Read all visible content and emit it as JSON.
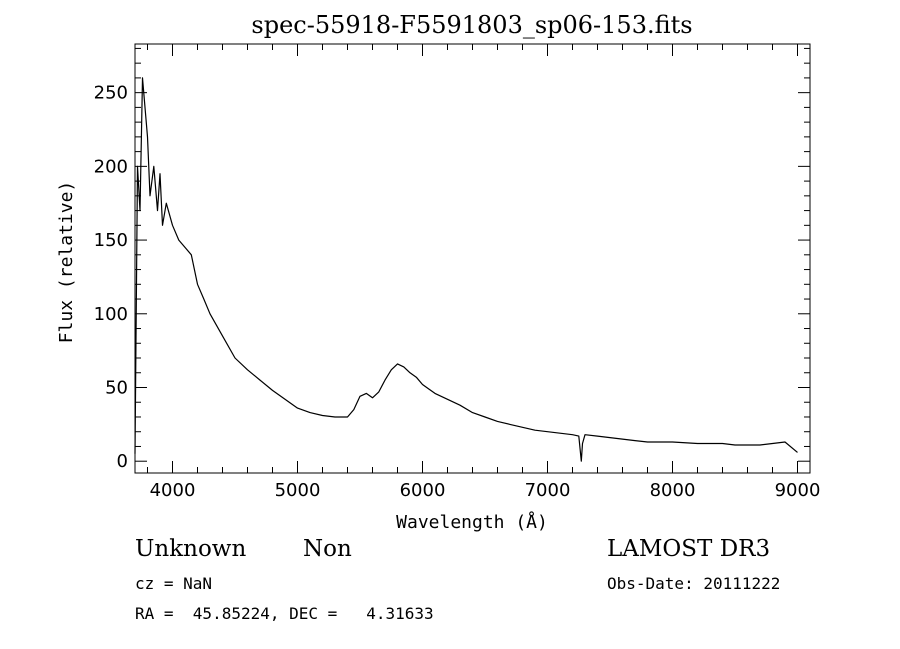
{
  "chart_data": {
    "type": "line",
    "title": "spec-55918-F5591803_sp06-153.fits",
    "xlabel": "Wavelength (Å)",
    "ylabel": "Flux (relative)",
    "xlim": [
      3700,
      9100
    ],
    "ylim": [
      -8,
      283
    ],
    "xticks": [
      4000,
      5000,
      6000,
      7000,
      8000,
      9000
    ],
    "xtick_labels": [
      "4000",
      "5000",
      "6000",
      "7000",
      "8000",
      "9000"
    ],
    "yticks": [
      0,
      50,
      100,
      150,
      200,
      250
    ],
    "ytick_labels": [
      "0",
      "50",
      "100",
      "150",
      "200",
      "250"
    ],
    "series": [
      {
        "name": "flux",
        "x": [
          3700,
          3720,
          3740,
          3760,
          3780,
          3800,
          3820,
          3850,
          3880,
          3900,
          3920,
          3950,
          4000,
          4050,
          4100,
          4150,
          4200,
          4250,
          4300,
          4400,
          4500,
          4600,
          4700,
          4800,
          4900,
          5000,
          5100,
          5200,
          5300,
          5400,
          5450,
          5500,
          5550,
          5600,
          5650,
          5700,
          5750,
          5800,
          5850,
          5900,
          5950,
          6000,
          6050,
          6100,
          6200,
          6300,
          6400,
          6500,
          6600,
          6700,
          6800,
          6900,
          7000,
          7100,
          7200,
          7250,
          7270,
          7280,
          7300,
          7400,
          7500,
          7600,
          7700,
          7800,
          7900,
          8000,
          8200,
          8300,
          8400,
          8500,
          8600,
          8700,
          8800,
          8900,
          9000
        ],
        "values": [
          5,
          200,
          170,
          260,
          240,
          220,
          180,
          200,
          170,
          195,
          160,
          175,
          160,
          150,
          145,
          140,
          120,
          110,
          100,
          85,
          70,
          62,
          55,
          48,
          42,
          36,
          33,
          31,
          30,
          30,
          35,
          44,
          46,
          43,
          47,
          55,
          62,
          66,
          64,
          60,
          57,
          52,
          49,
          46,
          42,
          38,
          33,
          30,
          27,
          25,
          23,
          21,
          20,
          19,
          18,
          17,
          0,
          12,
          18,
          17,
          16,
          15,
          14,
          13,
          13,
          13,
          12,
          12,
          12,
          11,
          11,
          11,
          12,
          13,
          6
        ]
      }
    ]
  },
  "info": {
    "object_class": "Unknown",
    "object_subclass": "Non",
    "survey": "LAMOST DR3",
    "redshift": "cz = NaN",
    "obs_date": "Obs-Date: 20111222",
    "coords": "RA =  45.85224, DEC =   4.31633"
  }
}
